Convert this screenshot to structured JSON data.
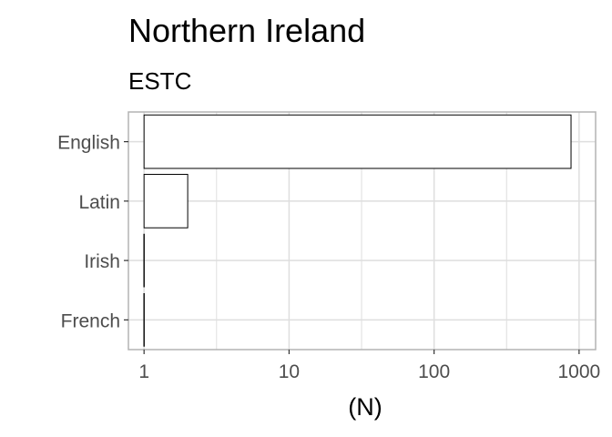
{
  "chart_data": {
    "type": "bar",
    "orientation": "horizontal",
    "title": "Northern Ireland",
    "subtitle": "ESTC",
    "xlabel": "(N)",
    "ylabel": "",
    "x_scale": "log10",
    "xlim": [
      0.78,
      1300
    ],
    "x_ticks": [
      1,
      10,
      100,
      1000
    ],
    "x_tick_labels": [
      "1",
      "10",
      "100",
      "1000"
    ],
    "categories": [
      "English",
      "Latin",
      "Irish",
      "French"
    ],
    "values": [
      880,
      2,
      1,
      1
    ],
    "bar_fill": "#ffffff",
    "bar_stroke": "#000000",
    "grid": true,
    "grid_color": "#dedede",
    "panel_border_color": "#b3b3b3"
  }
}
